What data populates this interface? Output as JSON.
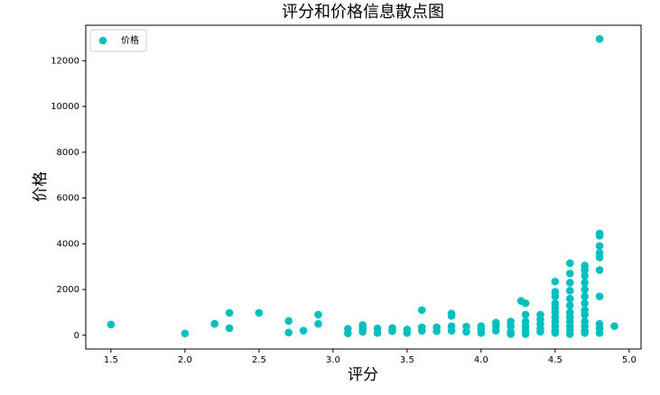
{
  "chart_data": {
    "type": "scatter",
    "title": "评分和价格信息散点图",
    "x_label": "评分",
    "y_label": "价格",
    "x": [
      1.5,
      2.0,
      2.2,
      2.3,
      2.3,
      2.5,
      2.7,
      2.7,
      2.8,
      2.9,
      2.9,
      3.1,
      3.1,
      3.2,
      3.2,
      3.2,
      3.3,
      3.3,
      3.4,
      3.4,
      3.5,
      3.5,
      3.6,
      3.6,
      3.6,
      3.7,
      3.7,
      3.8,
      3.8,
      3.8,
      3.8,
      3.9,
      3.9,
      4.0,
      4.0,
      4.0,
      4.1,
      4.1,
      4.1,
      4.2,
      4.2,
      4.2,
      4.2,
      4.27,
      4.3,
      4.3,
      4.3,
      4.3,
      4.3,
      4.3,
      4.4,
      4.4,
      4.4,
      4.4,
      4.4,
      4.5,
      4.5,
      4.5,
      4.5,
      4.5,
      4.5,
      4.5,
      4.5,
      4.5,
      4.5,
      4.5,
      4.6,
      4.6,
      4.6,
      4.6,
      4.6,
      4.6,
      4.6,
      4.6,
      4.6,
      4.6,
      4.6,
      4.6,
      4.7,
      4.7,
      4.7,
      4.7,
      4.7,
      4.7,
      4.7,
      4.7,
      4.7,
      4.7,
      4.7,
      4.7,
      4.7,
      4.8,
      4.8,
      4.8,
      4.8,
      4.8,
      4.8,
      4.8,
      4.8,
      4.8,
      4.8,
      4.8,
      4.9
    ],
    "series": [
      {
        "name": "价格",
        "color": "#00bfbf",
        "values": [
          470,
          80,
          500,
          980,
          310,
          980,
          630,
          120,
          200,
          900,
          500,
          280,
          80,
          450,
          300,
          150,
          300,
          100,
          320,
          180,
          250,
          100,
          1100,
          350,
          200,
          350,
          180,
          950,
          850,
          400,
          200,
          380,
          150,
          400,
          250,
          100,
          550,
          400,
          200,
          600,
          400,
          150,
          50,
          1500,
          1400,
          900,
          600,
          400,
          200,
          50,
          900,
          700,
          500,
          300,
          150,
          2350,
          1900,
          1700,
          1400,
          1200,
          1000,
          800,
          600,
          400,
          200,
          100,
          3150,
          2700,
          2300,
          1950,
          1600,
          1300,
          1000,
          800,
          600,
          400,
          200,
          50,
          3050,
          2850,
          2600,
          2300,
          2000,
          1700,
          1400,
          1100,
          900,
          600,
          400,
          200,
          100,
          12950,
          4450,
          4350,
          3900,
          3600,
          3400,
          2850,
          1700,
          500,
          300,
          100,
          400
        ]
      }
    ],
    "xlim": [
      1.33,
      5.08
    ],
    "ylim": [
      -600,
      13550
    ],
    "xticks": [
      1.5,
      {
        "value": 2,
        "label": "2.0"
      },
      2.5,
      {
        "value": 3,
        "label": "3.0"
      },
      3.5,
      {
        "value": 4,
        "label": "4.0"
      },
      4.5,
      {
        "value": 5,
        "label": "5.0"
      }
    ],
    "yticks": [
      0,
      2000,
      4000,
      6000,
      8000,
      10000,
      12000
    ],
    "legend": "upper left"
  }
}
